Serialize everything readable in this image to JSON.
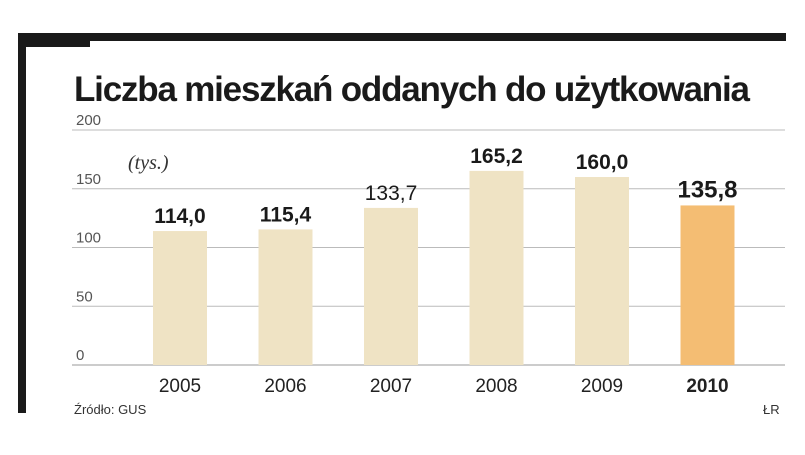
{
  "title": "Liczba mieszkań oddanych do użytkowania",
  "unit_label": "(tys.)",
  "source": "Źródło: GUS",
  "credit": "ŁR",
  "colors": {
    "bar": "#efe3c4",
    "bar_highlight": "#f4bd73",
    "grid": "#bbbbbb",
    "frame": "#1a1a1a"
  },
  "chart_data": {
    "type": "bar",
    "categories": [
      "2005",
      "2006",
      "2007",
      "2008",
      "2009",
      "2010"
    ],
    "values": [
      114.0,
      115.4,
      133.7,
      165.2,
      160.0,
      135.8
    ],
    "data_labels": [
      "114,0",
      "115,4",
      "133,7",
      "165,2",
      "160,0",
      "135,8"
    ],
    "highlight_category": "2010",
    "ylim": [
      0,
      200
    ],
    "yticks": [
      0,
      50,
      100,
      150,
      200
    ],
    "grid": true,
    "xlabel": "",
    "ylabel": ""
  }
}
